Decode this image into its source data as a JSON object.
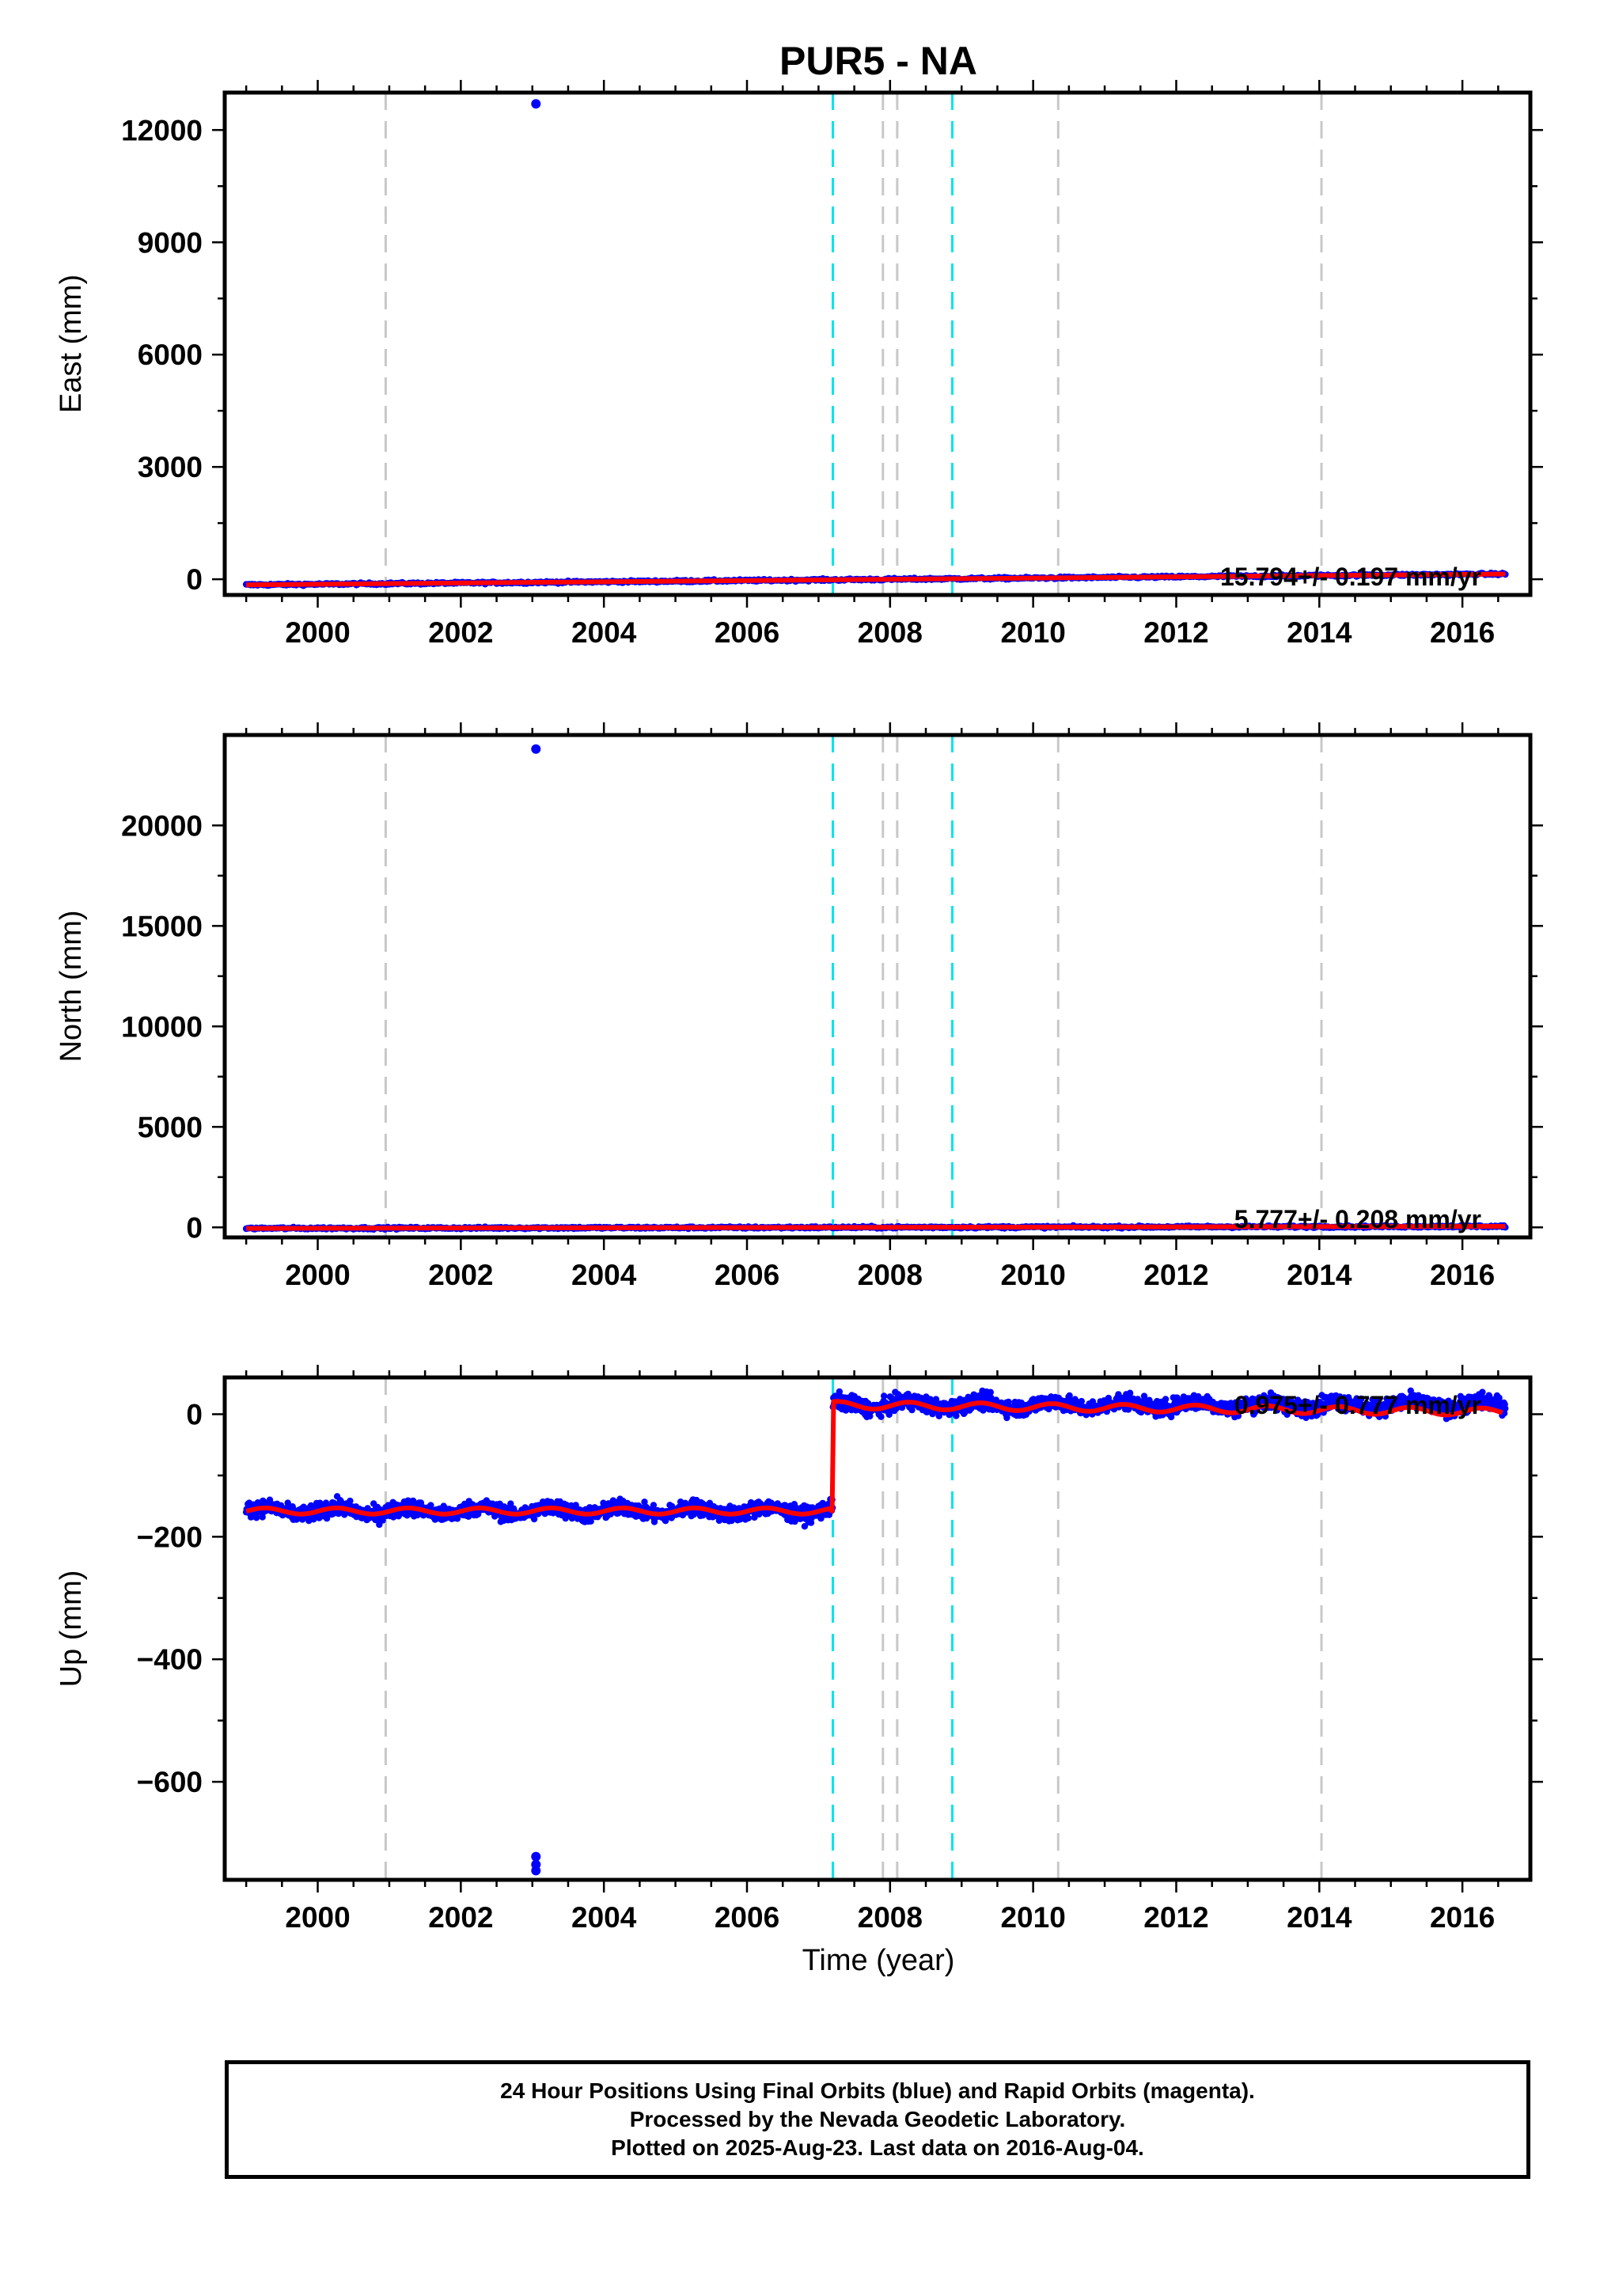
{
  "title": "PUR5 - NA",
  "xlabel": "Time (year)",
  "footer": {
    "line1": "24 Hour Positions Using Final Orbits (blue) and Rapid Orbits (magenta).",
    "line2": "Processed by the Nevada Geodetic Laboratory.",
    "line3": "Plotted on 2025-Aug-23. Last data on 2016-Aug-04."
  },
  "colors": {
    "final_orbits": "#0000ff",
    "model_fit": "#ff0000",
    "event_gray": "#c8c8c8",
    "event_cyan": "#00e5ee"
  },
  "chart_data": [
    {
      "type": "scatter",
      "panel": "east",
      "ylabel": "East (mm)",
      "xlim": [
        1998.7,
        2016.95
      ],
      "ylim": [
        -420,
        13000
      ],
      "xticks": [
        2000,
        2002,
        2004,
        2006,
        2008,
        2010,
        2012,
        2014,
        2016
      ],
      "yticks": [
        0,
        3000,
        6000,
        9000,
        12000
      ],
      "rate_label": "15.794+/- 0.197 mm/yr",
      "trend": {
        "start": [
          1999.0,
          -150
        ],
        "end": [
          2016.6,
          140
        ]
      },
      "outliers": [
        {
          "x": 2003.05,
          "y": 12700
        }
      ],
      "event_lines_gray": [
        2000.95,
        2007.9,
        2008.1,
        2010.35,
        2014.03
      ],
      "event_lines_cyan": [
        2007.2,
        2008.87
      ]
    },
    {
      "type": "scatter",
      "panel": "north",
      "ylabel": "North (mm)",
      "xlim": [
        1998.7,
        2016.95
      ],
      "ylim": [
        -500,
        24500
      ],
      "xticks": [
        2000,
        2002,
        2004,
        2006,
        2008,
        2010,
        2012,
        2014,
        2016
      ],
      "yticks": [
        0,
        5000,
        10000,
        15000,
        20000
      ],
      "rate_label": "5.777+/- 0.208 mm/yr",
      "trend": {
        "start": [
          1999.0,
          -50
        ],
        "end": [
          2016.6,
          50
        ]
      },
      "outliers": [
        {
          "x": 2003.05,
          "y": 23800
        }
      ],
      "event_lines_gray": [
        2000.95,
        2007.9,
        2008.1,
        2010.35,
        2014.03
      ],
      "event_lines_cyan": [
        2007.2,
        2008.87
      ]
    },
    {
      "type": "scatter",
      "panel": "up",
      "ylabel": "Up (mm)",
      "xlim": [
        1998.7,
        2016.95
      ],
      "ylim": [
        -760,
        60
      ],
      "xticks": [
        2000,
        2002,
        2004,
        2006,
        2008,
        2010,
        2012,
        2014,
        2016
      ],
      "yticks": [
        -600,
        -400,
        -200,
        0
      ],
      "rate_label": "0.975+/- 0.777 mm/yr",
      "segments": [
        {
          "x_start": 1999.0,
          "x_end": 2007.19,
          "level": -158
        },
        {
          "x_start": 2007.21,
          "x_end": 2016.6,
          "level": 15
        }
      ],
      "outliers": [
        {
          "x": 2003.05,
          "y": -722
        },
        {
          "x": 2003.05,
          "y": -735
        },
        {
          "x": 2003.05,
          "y": -745
        }
      ],
      "event_lines_gray": [
        2000.95,
        2007.9,
        2008.1,
        2010.35,
        2014.03
      ],
      "event_lines_cyan": [
        2007.2,
        2008.87
      ]
    }
  ]
}
